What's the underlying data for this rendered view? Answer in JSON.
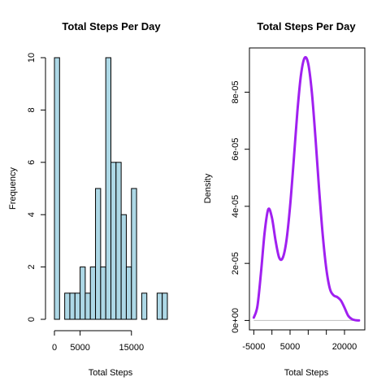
{
  "chart_data": [
    {
      "type": "bar",
      "title": "Total Steps Per Day",
      "xlabel": "Total Steps",
      "ylabel": "Frequency",
      "bar_color": "#add8e6",
      "bins": [
        {
          "x0": 0,
          "x1": 1000,
          "count": 10
        },
        {
          "x0": 1000,
          "x1": 2000,
          "count": 0
        },
        {
          "x0": 2000,
          "x1": 3000,
          "count": 1
        },
        {
          "x0": 3000,
          "x1": 4000,
          "count": 1
        },
        {
          "x0": 4000,
          "x1": 5000,
          "count": 1
        },
        {
          "x0": 5000,
          "x1": 6000,
          "count": 2
        },
        {
          "x0": 6000,
          "x1": 7000,
          "count": 1
        },
        {
          "x0": 7000,
          "x1": 8000,
          "count": 2
        },
        {
          "x0": 8000,
          "x1": 9000,
          "count": 5
        },
        {
          "x0": 9000,
          "x1": 10000,
          "count": 2
        },
        {
          "x0": 10000,
          "x1": 11000,
          "count": 10
        },
        {
          "x0": 11000,
          "x1": 12000,
          "count": 6
        },
        {
          "x0": 12000,
          "x1": 13000,
          "count": 6
        },
        {
          "x0": 13000,
          "x1": 14000,
          "count": 4
        },
        {
          "x0": 14000,
          "x1": 15000,
          "count": 2
        },
        {
          "x0": 15000,
          "x1": 16000,
          "count": 5
        },
        {
          "x0": 16000,
          "x1": 17000,
          "count": 0
        },
        {
          "x0": 17000,
          "x1": 18000,
          "count": 1
        },
        {
          "x0": 18000,
          "x1": 19000,
          "count": 0
        },
        {
          "x0": 19000,
          "x1": 20000,
          "count": 0
        },
        {
          "x0": 20000,
          "x1": 21000,
          "count": 1
        },
        {
          "x0": 21000,
          "x1": 22000,
          "count": 1
        }
      ],
      "xlim": [
        0,
        22000
      ],
      "ylim": [
        0,
        10
      ],
      "x_ticks": [
        0,
        5000,
        15000
      ],
      "x_tick_labels": [
        "0",
        "5000",
        "15000"
      ],
      "y_ticks": [
        0,
        2,
        4,
        6,
        8,
        10
      ],
      "y_tick_labels": [
        "0",
        "2",
        "4",
        "6",
        "8",
        "10"
      ],
      "grid": false
    },
    {
      "type": "line",
      "title": "Total Steps Per Day",
      "xlabel": "Total Steps",
      "ylabel": "Density",
      "line_color": "#a020f0",
      "baseline_color": "#bebebe",
      "x": [
        -5000,
        -4000,
        -3000,
        -2000,
        -1000,
        0,
        1000,
        2000,
        3000,
        4000,
        5000,
        6000,
        7000,
        8000,
        9000,
        10000,
        11000,
        12000,
        13000,
        14000,
        15000,
        16000,
        17000,
        18000,
        19000,
        20000,
        21000,
        22000,
        23000,
        24000
      ],
      "y": [
        1e-06,
        5e-06,
        1.7e-05,
        3.1e-05,
        3.9e-05,
        3.6e-05,
        2.8e-05,
        2.2e-05,
        2.2e-05,
        2.8e-05,
        4e-05,
        5.6e-05,
        7.3e-05,
        8.6e-05,
        9.2e-05,
        9e-05,
        8e-05,
        6.4e-05,
        4.6e-05,
        3e-05,
        1.8e-05,
        1.1e-05,
        8.8e-06,
        8.2e-06,
        7e-06,
        4.5e-06,
        1.7e-06,
        5e-07,
        1e-07,
        0.0
      ],
      "xlim": [
        -6200,
        25600
      ],
      "ylim": [
        -3.3e-06,
        9.55e-05
      ],
      "x_ticks": [
        -5000,
        0,
        5000,
        10000,
        15000,
        20000
      ],
      "x_tick_labels": [
        "-5000",
        "5000",
        "20000"
      ],
      "x_tick_labeled_values": [
        -5000,
        5000,
        20000
      ],
      "y_ticks": [
        0,
        2e-05,
        4e-05,
        6e-05,
        8e-05
      ],
      "y_tick_labels": [
        "0e+00",
        "2e-05",
        "4e-05",
        "6e-05",
        "8e-05"
      ],
      "grid": false
    }
  ]
}
